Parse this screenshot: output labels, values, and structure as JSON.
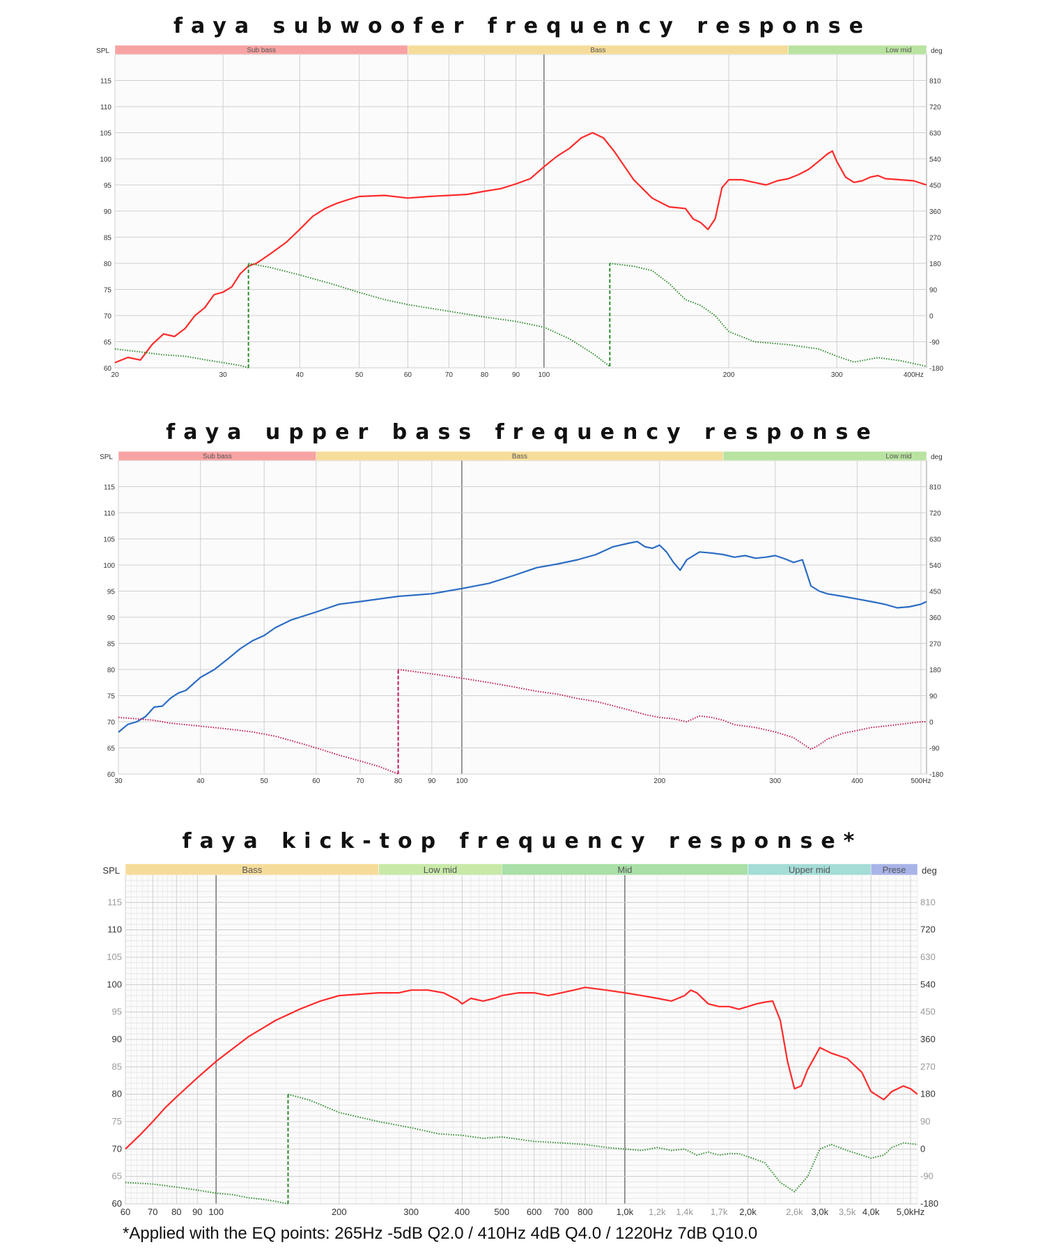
{
  "chart_data": [
    {
      "type": "line",
      "title": "FAYA SUBWOOFER FREQUENCY RESPONSE",
      "ylabel": "SPL",
      "y2label": "deg",
      "x_scale": "log",
      "xlim": [
        20,
        420
      ],
      "ylim": [
        60,
        120
      ],
      "y2lim": [
        -180,
        900
      ],
      "x_ticks": [
        {
          "v": 20,
          "label": "20"
        },
        {
          "v": 30,
          "label": "30"
        },
        {
          "v": 40,
          "label": "40"
        },
        {
          "v": 50,
          "label": "50"
        },
        {
          "v": 60,
          "label": "60"
        },
        {
          "v": 70,
          "label": "70"
        },
        {
          "v": 80,
          "label": "80"
        },
        {
          "v": 90,
          "label": "90"
        },
        {
          "v": 100,
          "label": "100"
        },
        {
          "v": 200,
          "label": "200"
        },
        {
          "v": 300,
          "label": "300"
        },
        {
          "v": 400,
          "label": "400Hz"
        }
      ],
      "y_ticks": [
        60,
        65,
        70,
        75,
        80,
        85,
        90,
        95,
        100,
        105,
        110,
        115
      ],
      "y2_ticks": [
        -180,
        -90,
        0,
        90,
        180,
        270,
        360,
        450,
        540,
        630,
        720,
        810
      ],
      "bands": [
        {
          "label": "Sub bass",
          "from": 20,
          "to": 60,
          "color": "#f7a3a3"
        },
        {
          "label": "Bass",
          "from": 60,
          "to": 250,
          "color": "#f6dc9a"
        },
        {
          "label": "Low mid",
          "from": 250,
          "to": 420,
          "color": "#b9e3a0"
        }
      ],
      "series": [
        {
          "kind": "spl",
          "color": "#ff2a2a",
          "style": "solid",
          "x": [
            20,
            21,
            22,
            23,
            24,
            25,
            26,
            27,
            28,
            29,
            30,
            31,
            32,
            33,
            34,
            35,
            36,
            38,
            40,
            42,
            44,
            46,
            48,
            50,
            55,
            60,
            65,
            70,
            75,
            80,
            85,
            90,
            95,
            100,
            105,
            110,
            115,
            120,
            125,
            130,
            140,
            150,
            160,
            170,
            175,
            180,
            185,
            190,
            195,
            200,
            210,
            220,
            230,
            240,
            250,
            260,
            270,
            280,
            290,
            295,
            300,
            310,
            320,
            330,
            340,
            350,
            360,
            380,
            400,
            420
          ],
          "y": [
            61,
            62,
            61.5,
            64.5,
            66.5,
            66,
            67.5,
            70,
            71.5,
            74,
            74.5,
            75.5,
            78,
            79.5,
            80,
            81,
            82,
            84,
            86.5,
            89,
            90.5,
            91.5,
            92.2,
            92.8,
            93.0,
            92.5,
            92.8,
            93.0,
            93.2,
            93.8,
            94.3,
            95.2,
            96.2,
            98.5,
            100.5,
            102.0,
            104.0,
            105.0,
            104.0,
            101.5,
            96.0,
            92.5,
            90.8,
            90.5,
            88.5,
            87.8,
            86.5,
            88.5,
            94.5,
            96.0,
            96.0,
            95.5,
            95.0,
            95.8,
            96.2,
            97.0,
            98.0,
            99.5,
            101.0,
            101.5,
            99.5,
            96.5,
            95.5,
            95.8,
            96.5,
            96.8,
            96.2,
            96.0,
            95.8,
            95.0
          ]
        },
        {
          "kind": "phase",
          "color": "#2e8b2e",
          "style": "dotted",
          "wrap_at": [
            33,
            128
          ],
          "x": [
            20,
            22,
            24,
            26,
            28,
            30,
            32,
            33,
            33,
            36,
            40,
            45,
            50,
            55,
            60,
            70,
            80,
            90,
            100,
            110,
            120,
            128,
            128,
            140,
            150,
            160,
            170,
            180,
            190,
            200,
            220,
            250,
            280,
            300,
            320,
            350,
            380,
            400,
            420
          ],
          "y": [
            -115,
            -125,
            -135,
            -140,
            -152,
            -162,
            -172,
            -180,
            180,
            165,
            140,
            110,
            80,
            55,
            38,
            15,
            -5,
            -20,
            -40,
            -80,
            -130,
            -175,
            180,
            170,
            155,
            110,
            55,
            35,
            0,
            -55,
            -90,
            -100,
            -115,
            -140,
            -160,
            -145,
            -155,
            -165,
            -175
          ]
        }
      ]
    },
    {
      "type": "line",
      "title": "FAYA UPPER BASS FREQUENCY RESPONSE",
      "ylabel": "SPL",
      "y2label": "deg",
      "x_scale": "log",
      "xlim": [
        30,
        510
      ],
      "ylim": [
        60,
        120
      ],
      "y2lim": [
        -180,
        900
      ],
      "x_ticks": [
        {
          "v": 30,
          "label": "30"
        },
        {
          "v": 40,
          "label": "40"
        },
        {
          "v": 50,
          "label": "50"
        },
        {
          "v": 60,
          "label": "60"
        },
        {
          "v": 70,
          "label": "70"
        },
        {
          "v": 80,
          "label": "80"
        },
        {
          "v": 90,
          "label": "90"
        },
        {
          "v": 100,
          "label": "100"
        },
        {
          "v": 200,
          "label": "200"
        },
        {
          "v": 300,
          "label": "300"
        },
        {
          "v": 400,
          "label": "400"
        },
        {
          "v": 500,
          "label": "500Hz"
        }
      ],
      "y_ticks": [
        60,
        65,
        70,
        75,
        80,
        85,
        90,
        95,
        100,
        105,
        110,
        115
      ],
      "y2_ticks": [
        -180,
        -90,
        0,
        90,
        180,
        270,
        360,
        450,
        540,
        630,
        720,
        810
      ],
      "bands": [
        {
          "label": "Sub bass",
          "from": 30,
          "to": 60,
          "color": "#f7a3a3"
        },
        {
          "label": "Bass",
          "from": 60,
          "to": 250,
          "color": "#f6dc9a"
        },
        {
          "label": "Low mid",
          "from": 250,
          "to": 510,
          "color": "#b9e3a0"
        }
      ],
      "series": [
        {
          "kind": "spl",
          "color": "#2b6cc4",
          "style": "solid",
          "x": [
            30,
            31,
            32,
            33,
            34,
            35,
            36,
            37,
            38,
            40,
            42,
            44,
            46,
            48,
            50,
            52,
            55,
            60,
            65,
            70,
            80,
            90,
            100,
            110,
            120,
            130,
            140,
            150,
            160,
            170,
            180,
            185,
            190,
            195,
            200,
            205,
            210,
            215,
            220,
            230,
            240,
            250,
            260,
            270,
            280,
            290,
            300,
            310,
            320,
            330,
            340,
            350,
            360,
            380,
            400,
            420,
            440,
            460,
            480,
            500,
            510
          ],
          "y": [
            68.0,
            69.5,
            70.0,
            71.0,
            72.8,
            73.0,
            74.5,
            75.5,
            76.0,
            78.5,
            80.0,
            82.0,
            84.0,
            85.5,
            86.5,
            88.0,
            89.5,
            91.0,
            92.5,
            93.0,
            94.0,
            94.5,
            95.5,
            96.5,
            98.0,
            99.5,
            100.2,
            101.0,
            102.0,
            103.5,
            104.2,
            104.5,
            103.5,
            103.2,
            103.8,
            102.5,
            100.5,
            99.0,
            101.0,
            102.5,
            102.3,
            102.0,
            101.5,
            101.8,
            101.3,
            101.5,
            101.8,
            101.2,
            100.5,
            101.0,
            96.0,
            95.0,
            94.5,
            94.0,
            93.5,
            93.0,
            92.5,
            91.8,
            92.0,
            92.5,
            93.0
          ]
        },
        {
          "kind": "phase",
          "color": "#c2185b",
          "style": "dotted",
          "wrap_at": [
            80
          ],
          "x": [
            30,
            32,
            34,
            36,
            38,
            40,
            44,
            48,
            52,
            56,
            60,
            65,
            70,
            75,
            80,
            80,
            90,
            100,
            110,
            120,
            130,
            140,
            150,
            160,
            170,
            180,
            190,
            200,
            210,
            220,
            230,
            240,
            250,
            260,
            280,
            300,
            320,
            340,
            350,
            360,
            380,
            400,
            420,
            440,
            460,
            480,
            500,
            510
          ],
          "y": [
            15,
            10,
            5,
            -5,
            -10,
            -15,
            -25,
            -35,
            -50,
            -70,
            -90,
            -115,
            -135,
            -155,
            -180,
            180,
            165,
            150,
            135,
            120,
            105,
            95,
            80,
            70,
            55,
            40,
            25,
            15,
            10,
            0,
            20,
            15,
            5,
            -10,
            -20,
            -35,
            -55,
            -95,
            -80,
            -60,
            -40,
            -30,
            -20,
            -15,
            -10,
            -5,
            0,
            0
          ]
        }
      ]
    },
    {
      "type": "line",
      "title": "FAYA KICK-TOP FREQUENCY RESPONSE*",
      "ylabel": "SPL",
      "y2label": "deg",
      "x_scale": "log",
      "xlim": [
        60,
        5200
      ],
      "ylim": [
        60,
        120
      ],
      "y2lim": [
        -180,
        900
      ],
      "x_ticks": [
        {
          "v": 60,
          "label": "60"
        },
        {
          "v": 70,
          "label": "70"
        },
        {
          "v": 80,
          "label": "80"
        },
        {
          "v": 90,
          "label": "90"
        },
        {
          "v": 100,
          "label": "100"
        },
        {
          "v": 200,
          "label": "200"
        },
        {
          "v": 300,
          "label": "300"
        },
        {
          "v": 400,
          "label": "400"
        },
        {
          "v": 500,
          "label": "500"
        },
        {
          "v": 600,
          "label": "600"
        },
        {
          "v": 700,
          "label": "700"
        },
        {
          "v": 800,
          "label": "800"
        },
        {
          "v": 1000,
          "label": "1,0k"
        },
        {
          "v": 1200,
          "label": "1,2k"
        },
        {
          "v": 1400,
          "label": "1,4k"
        },
        {
          "v": 1700,
          "label": "1,7k"
        },
        {
          "v": 2000,
          "label": "2,0k"
        },
        {
          "v": 2600,
          "label": "2,6k"
        },
        {
          "v": 3000,
          "label": "3,0k"
        },
        {
          "v": 3500,
          "label": "3,5k"
        },
        {
          "v": 4000,
          "label": "4,0k"
        },
        {
          "v": 5000,
          "label": "5,0kHz"
        }
      ],
      "y_ticks": [
        60,
        65,
        70,
        75,
        80,
        85,
        90,
        95,
        100,
        105,
        110,
        115
      ],
      "y2_ticks": [
        -180,
        -90,
        0,
        90,
        180,
        270,
        360,
        450,
        540,
        630,
        720,
        810
      ],
      "bands": [
        {
          "label": "Bass",
          "from": 60,
          "to": 250,
          "color": "#f6dc9a"
        },
        {
          "label": "Low mid",
          "from": 250,
          "to": 500,
          "color": "#c8e9a8"
        },
        {
          "label": "Mid",
          "from": 500,
          "to": 2000,
          "color": "#a8e0a8"
        },
        {
          "label": "Upper mid",
          "from": 2000,
          "to": 4000,
          "color": "#a4dcd6"
        },
        {
          "label": "Prese",
          "from": 4000,
          "to": 5200,
          "color": "#a8b4e8"
        }
      ],
      "series": [
        {
          "kind": "spl",
          "color": "#ff2a2a",
          "style": "solid",
          "x": [
            60,
            65,
            70,
            75,
            80,
            90,
            100,
            120,
            140,
            160,
            180,
            200,
            250,
            280,
            300,
            330,
            360,
            390,
            400,
            420,
            450,
            480,
            500,
            550,
            600,
            650,
            700,
            750,
            800,
            900,
            1000,
            1100,
            1200,
            1300,
            1400,
            1450,
            1500,
            1600,
            1700,
            1800,
            1900,
            2000,
            2100,
            2200,
            2300,
            2400,
            2500,
            2600,
            2700,
            2800,
            3000,
            3200,
            3500,
            3800,
            4000,
            4300,
            4500,
            4800,
            5000,
            5200
          ],
          "y": [
            70.0,
            72.5,
            75.0,
            77.5,
            79.5,
            83.0,
            86.0,
            90.5,
            93.5,
            95.5,
            97.0,
            98.0,
            98.5,
            98.5,
            99.0,
            99.0,
            98.5,
            97.2,
            96.5,
            97.5,
            97.0,
            97.5,
            98.0,
            98.5,
            98.5,
            98.0,
            98.5,
            99.0,
            99.5,
            99.0,
            98.5,
            98.0,
            97.5,
            97.0,
            98.0,
            99.0,
            98.5,
            96.5,
            96.0,
            96.0,
            95.5,
            96.0,
            96.5,
            96.8,
            97.0,
            93.5,
            86.0,
            81.0,
            81.5,
            84.5,
            88.5,
            87.5,
            86.5,
            84.0,
            80.5,
            79.0,
            80.5,
            81.5,
            81.0,
            80.0
          ]
        },
        {
          "kind": "phase",
          "color": "#2e8b2e",
          "style": "dotted",
          "wrap_at": [
            150
          ],
          "x": [
            60,
            70,
            80,
            90,
            100,
            110,
            120,
            130,
            140,
            150,
            150,
            170,
            200,
            250,
            300,
            350,
            400,
            450,
            500,
            600,
            700,
            800,
            900,
            1000,
            1100,
            1200,
            1300,
            1400,
            1500,
            1600,
            1700,
            1800,
            1900,
            2000,
            2200,
            2400,
            2600,
            2800,
            3000,
            3200,
            3500,
            3800,
            4000,
            4300,
            4500,
            4800,
            5200
          ],
          "y": [
            -110,
            -115,
            -125,
            -135,
            -145,
            -150,
            -160,
            -165,
            -172,
            -180,
            180,
            160,
            120,
            90,
            70,
            50,
            45,
            35,
            40,
            25,
            20,
            15,
            5,
            0,
            -5,
            5,
            -5,
            0,
            -20,
            -10,
            -20,
            -15,
            -15,
            -25,
            -45,
            -110,
            -140,
            -90,
            0,
            15,
            -5,
            -20,
            -30,
            -20,
            5,
            20,
            15
          ]
        }
      ]
    }
  ],
  "footnote": "*Applied with the EQ points: 265Hz -5dB Q2.0 / 410Hz 4dB Q4.0 / 1220Hz 7dB Q10.0"
}
